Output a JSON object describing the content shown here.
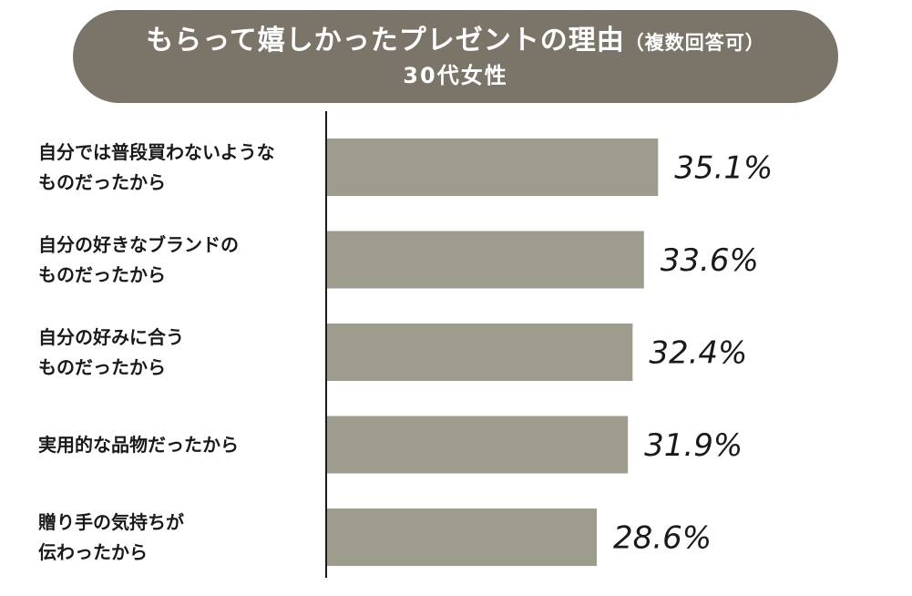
{
  "chart_data": {
    "type": "bar",
    "orientation": "horizontal",
    "title": "もらって嬉しかったプレゼントの理由",
    "title_note": "（複数回答可）",
    "subtitle": "30代女性",
    "categories": [
      [
        "自分では普段買わないような",
        "ものだったから"
      ],
      [
        "自分の好きなブランドの",
        "ものだったから"
      ],
      [
        "自分の好みに合う",
        "ものだったから"
      ],
      [
        "実用的な品物だったから"
      ],
      [
        "贈り手の気持ちが",
        "伝わったから"
      ]
    ],
    "values": [
      35.1,
      33.6,
      32.4,
      31.9,
      28.6
    ],
    "value_labels": [
      "35.1%",
      "33.6%",
      "32.4%",
      "31.9%",
      "28.6%"
    ],
    "unit": "%",
    "bar_color": "#9e9c8d",
    "title_bg_color": "#7a7469",
    "grid": false,
    "legend": "none"
  }
}
